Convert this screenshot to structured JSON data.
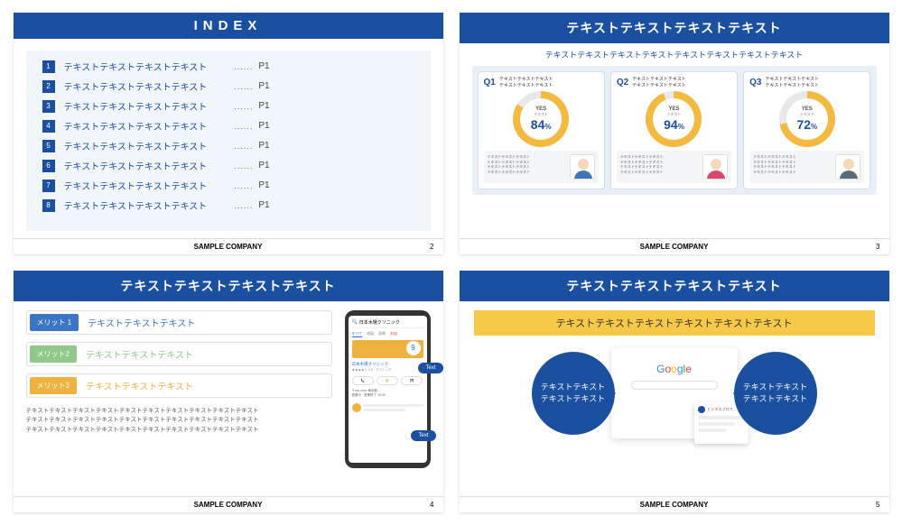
{
  "colors": {
    "brand": "#1b4fa0",
    "accent_yellow": "#f4b93f",
    "donut_track": "#e8e8e8",
    "slide_bg_tint": "#f0f6fa",
    "card_bg_tint": "#e8eff6"
  },
  "footer_company": "SAMPLE COMPANY",
  "slide1": {
    "title": "INDEX",
    "page": "2",
    "items": [
      {
        "n": "1",
        "text": "テキストテキストテキストテキスト",
        "page": "P1"
      },
      {
        "n": "2",
        "text": "テキストテキストテキストテキスト",
        "page": "P1"
      },
      {
        "n": "3",
        "text": "テキストテキストテキストテキスト",
        "page": "P1"
      },
      {
        "n": "4",
        "text": "テキストテキストテキストテキスト",
        "page": "P1"
      },
      {
        "n": "5",
        "text": "テキストテキストテキストテキスト",
        "page": "P1"
      },
      {
        "n": "6",
        "text": "テキストテキストテキストテキスト",
        "page": "P1"
      },
      {
        "n": "7",
        "text": "テキストテキストテキストテキスト",
        "page": "P1"
      },
      {
        "n": "8",
        "text": "テキストテキストテキストテキスト",
        "page": "P1"
      }
    ]
  },
  "slide2": {
    "title": "テキストテキストテキストテキスト",
    "subtitle": "テキストテキストテキストテキストテキストテキストテキストテキスト",
    "page": "3",
    "donut_fill_color": "#f4b93f",
    "donut_track_color": "#e8e8e8",
    "cards": [
      {
        "q": "Q1",
        "qtext": "テキストテキストテキスト\nテキストテキストテキスト",
        "yes": "YES",
        "sub": "テキスト",
        "pct": 84,
        "avatar_skin": "#f4d9b8",
        "avatar_shirt": "#3b76b5"
      },
      {
        "q": "Q2",
        "qtext": "テキストテキストテキスト\nテキストテキストテキスト",
        "yes": "YES",
        "sub": "テキスト",
        "pct": 94,
        "avatar_skin": "#f4d9b8",
        "avatar_shirt": "#d9476a"
      },
      {
        "q": "Q3",
        "qtext": "テキストテキストテキスト\nテキストテキストテキスト",
        "yes": "YES",
        "sub": "テキスト",
        "pct": 72,
        "avatar_skin": "#f4d9b8",
        "avatar_shirt": "#5a6b7a"
      }
    ],
    "comment_text": "テキストテキストテキスト\nテキストテキストテキスト\nテキストテキストテキスト\nテキストテキストテキスト"
  },
  "slide3": {
    "title": "テキストテキストテキストテキスト",
    "page": "4",
    "merits": [
      {
        "badge": "メリット 1",
        "color": "#3b76c4",
        "text": "テキストテキストテキスト",
        "text_color": "#3b76c4"
      },
      {
        "badge": "メリット2",
        "color": "#8fc98a",
        "text": "テキストテキストテキスト",
        "text_color": "#8fc98a"
      },
      {
        "badge": "メリット3",
        "color": "#f0b23e",
        "text": "テキストテキストテキスト",
        "text_color": "#f0b23e"
      }
    ],
    "paragraph": "テキストテキストテキストテキストテキストテキストテキストテキストテキストテキスト\nテキストテキストテキストテキストテキストテキストテキストテキストテキストテキスト\nテキストテキストテキストテキストテキストテキストテキストテキストテキストテキスト",
    "phone_title": "日本木場クリニック",
    "bubble1": "Text",
    "bubble2": "Text"
  },
  "slide4": {
    "title": "テキストテキストテキストテキスト",
    "highlight": "テキストテキストテキストテキストテキストテキスト",
    "page": "5",
    "left_circle": "テキストテキスト\nテキストテキスト",
    "right_circle": "テキストテキスト\nテキストテキスト",
    "google_logo_text": "Google",
    "profile_label": "ビジネスプロフ…"
  }
}
